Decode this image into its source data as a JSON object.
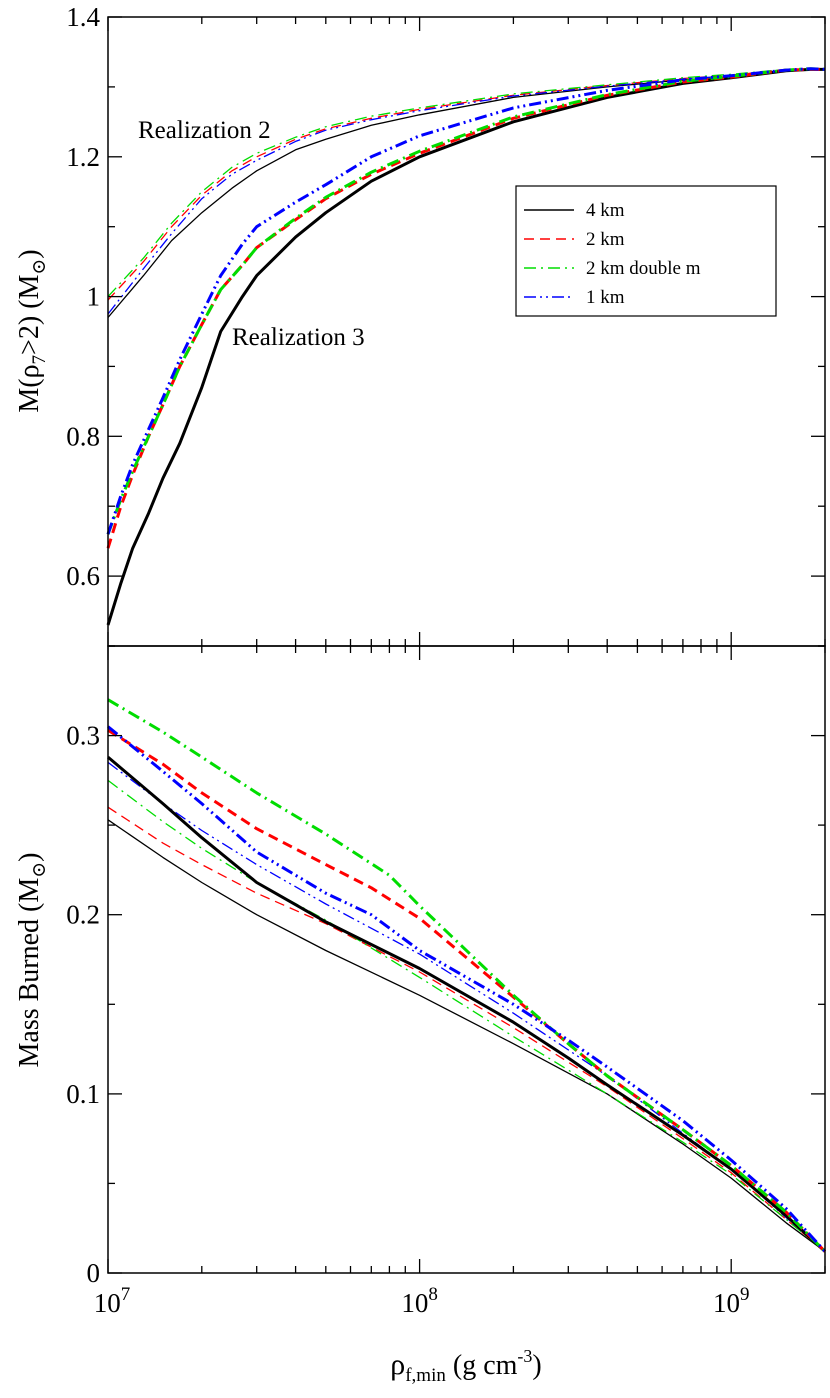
{
  "chart_data": [
    {
      "type": "line",
      "panel": "top",
      "ylabel": "M(ρ7>2) (M⊙)",
      "ylabel_parts": {
        "main": "M(ρ",
        "sub": "7",
        "rest": ">2) (M",
        "unit": "⊙",
        "close": ")"
      },
      "xscale": "log",
      "xlim": [
        10000000.0,
        2000000000.0
      ],
      "ylim": [
        0.5,
        1.4
      ],
      "yticks": [
        0.6,
        0.8,
        1.0,
        1.2,
        1.4
      ],
      "ytick_labels": [
        "0.6",
        "0.8",
        "1",
        "1.2",
        "1.4"
      ],
      "annotations": [
        {
          "text": "Realization 2",
          "x": 22000000.0,
          "y": 1.24
        },
        {
          "text": "Realization 3",
          "x": 27000000.0,
          "y": 0.93
        }
      ],
      "legend": {
        "position": "upper-right",
        "entries": [
          {
            "label": "4 km",
            "color": "#000000",
            "dash": "solid"
          },
          {
            "label": "2 km",
            "color": "#ff0000",
            "dash": "dashed"
          },
          {
            "label": "2 km double m",
            "color": "#00dd00",
            "dash": "dashdot"
          },
          {
            "label": "1 km",
            "color": "#0000ff",
            "dash": "dashdotdot"
          }
        ]
      },
      "series": [
        {
          "name": "4 km",
          "realization": "2",
          "color": "#000000",
          "dash": "solid",
          "width": 1.3,
          "x": [
            10000000.0,
            13000000.0,
            16000000.0,
            20000000.0,
            25000000.0,
            30000000.0,
            40000000.0,
            50000000.0,
            70000000.0,
            100000000.0,
            200000000.0,
            400000000.0,
            700000000.0,
            1000000000.0,
            1500000000.0,
            1800000000.0,
            2000000000.0
          ],
          "y": [
            0.97,
            1.03,
            1.08,
            1.12,
            1.155,
            1.18,
            1.21,
            1.225,
            1.245,
            1.26,
            1.285,
            1.3,
            1.31,
            1.315,
            1.323,
            1.325,
            1.325
          ]
        },
        {
          "name": "2 km",
          "realization": "2",
          "color": "#ff0000",
          "dash": "dashed",
          "width": 1.3,
          "x": [
            10000000.0,
            13000000.0,
            16000000.0,
            20000000.0,
            25000000.0,
            30000000.0,
            40000000.0,
            50000000.0,
            70000000.0,
            100000000.0,
            200000000.0,
            400000000.0,
            700000000.0,
            1000000000.0,
            1500000000.0,
            1800000000.0,
            2000000000.0
          ],
          "y": [
            0.995,
            1.05,
            1.1,
            1.145,
            1.18,
            1.2,
            1.225,
            1.24,
            1.255,
            1.268,
            1.288,
            1.302,
            1.312,
            1.317,
            1.324,
            1.325,
            1.325
          ]
        },
        {
          "name": "2 km double m",
          "realization": "2",
          "color": "#00dd00",
          "dash": "dashdot",
          "width": 1.3,
          "x": [
            10000000.0,
            13000000.0,
            16000000.0,
            20000000.0,
            25000000.0,
            30000000.0,
            40000000.0,
            50000000.0,
            70000000.0,
            100000000.0,
            200000000.0,
            400000000.0,
            700000000.0,
            1000000000.0,
            1500000000.0,
            1800000000.0,
            2000000000.0
          ],
          "y": [
            1.0,
            1.055,
            1.105,
            1.15,
            1.185,
            1.205,
            1.228,
            1.243,
            1.258,
            1.27,
            1.29,
            1.303,
            1.313,
            1.318,
            1.325,
            1.326,
            1.325
          ]
        },
        {
          "name": "1 km",
          "realization": "2",
          "color": "#0000ff",
          "dash": "dashdotdot",
          "width": 1.3,
          "x": [
            10000000.0,
            13000000.0,
            16000000.0,
            20000000.0,
            25000000.0,
            30000000.0,
            40000000.0,
            50000000.0,
            70000000.0,
            100000000.0,
            200000000.0,
            400000000.0,
            700000000.0,
            1000000000.0,
            1500000000.0,
            1800000000.0,
            2000000000.0
          ],
          "y": [
            0.975,
            1.04,
            1.09,
            1.14,
            1.175,
            1.195,
            1.222,
            1.238,
            1.253,
            1.266,
            1.287,
            1.301,
            1.311,
            1.316,
            1.324,
            1.325,
            1.325
          ]
        },
        {
          "name": "4 km",
          "realization": "3",
          "color": "#000000",
          "dash": "solid",
          "width": 3,
          "x": [
            10000000.0,
            11000000.0,
            12000000.0,
            13500000.0,
            15000000.0,
            17000000.0,
            20000000.0,
            23000000.0,
            27000000.0,
            30000000.0,
            40000000.0,
            50000000.0,
            70000000.0,
            100000000.0,
            200000000.0,
            400000000.0,
            700000000.0,
            1000000000.0,
            1500000000.0,
            1800000000.0,
            2000000000.0
          ],
          "y": [
            0.53,
            0.59,
            0.64,
            0.69,
            0.74,
            0.79,
            0.87,
            0.95,
            1.0,
            1.03,
            1.085,
            1.12,
            1.165,
            1.2,
            1.25,
            1.285,
            1.305,
            1.313,
            1.323,
            1.325,
            1.325
          ]
        },
        {
          "name": "2 km",
          "realization": "3",
          "color": "#ff0000",
          "dash": "dashed",
          "width": 3,
          "x": [
            10000000.0,
            11000000.0,
            12000000.0,
            13500000.0,
            15000000.0,
            17000000.0,
            20000000.0,
            23000000.0,
            27000000.0,
            30000000.0,
            40000000.0,
            50000000.0,
            70000000.0,
            100000000.0,
            200000000.0,
            400000000.0,
            700000000.0,
            1000000000.0,
            1500000000.0,
            1800000000.0,
            2000000000.0
          ],
          "y": [
            0.64,
            0.7,
            0.745,
            0.8,
            0.845,
            0.9,
            0.96,
            1.01,
            1.045,
            1.07,
            1.11,
            1.14,
            1.175,
            1.205,
            1.255,
            1.288,
            1.307,
            1.314,
            1.324,
            1.325,
            1.325
          ]
        },
        {
          "name": "2 km double m",
          "realization": "3",
          "color": "#00dd00",
          "dash": "dashdot",
          "width": 3,
          "x": [
            10000000.0,
            11000000.0,
            12000000.0,
            13500000.0,
            15000000.0,
            17000000.0,
            20000000.0,
            23000000.0,
            27000000.0,
            30000000.0,
            40000000.0,
            50000000.0,
            70000000.0,
            100000000.0,
            200000000.0,
            400000000.0,
            700000000.0,
            1000000000.0,
            1500000000.0,
            1800000000.0,
            2000000000.0
          ],
          "y": [
            0.66,
            0.71,
            0.75,
            0.8,
            0.845,
            0.9,
            0.96,
            1.01,
            1.045,
            1.07,
            1.112,
            1.142,
            1.178,
            1.208,
            1.257,
            1.289,
            1.308,
            1.315,
            1.324,
            1.326,
            1.325
          ]
        },
        {
          "name": "1 km",
          "realization": "3",
          "color": "#0000ff",
          "dash": "dashdotdot",
          "width": 3,
          "x": [
            10000000.0,
            11000000.0,
            12000000.0,
            13500000.0,
            15000000.0,
            17000000.0,
            20000000.0,
            23000000.0,
            27000000.0,
            30000000.0,
            40000000.0,
            50000000.0,
            70000000.0,
            100000000.0,
            200000000.0,
            400000000.0,
            700000000.0,
            1000000000.0,
            1500000000.0,
            1800000000.0,
            2000000000.0
          ],
          "y": [
            0.66,
            0.715,
            0.76,
            0.81,
            0.855,
            0.91,
            0.975,
            1.03,
            1.075,
            1.1,
            1.135,
            1.16,
            1.2,
            1.23,
            1.27,
            1.295,
            1.31,
            1.316,
            1.324,
            1.326,
            1.325
          ]
        }
      ]
    },
    {
      "type": "line",
      "panel": "bottom",
      "ylabel": "Mass Burned (M⊙)",
      "ylabel_parts": {
        "main": "Mass Burned (M",
        "unit": "⊙",
        "close": ")"
      },
      "xlabel": "ρf,min (g cm-3)",
      "xlabel_parts": {
        "rho": "ρ",
        "sub": "f,min",
        "mid": " (g cm",
        "sup": "-3",
        "close": ")"
      },
      "xscale": "log",
      "xlim": [
        10000000.0,
        2000000000.0
      ],
      "ylim": [
        0.0,
        0.35
      ],
      "yticks": [
        0.0,
        0.1,
        0.2,
        0.3
      ],
      "ytick_labels": [
        "0",
        "0.1",
        "0.2",
        "0.3"
      ],
      "xticks": [
        10000000.0,
        100000000.0,
        1000000000.0
      ],
      "xtick_labels": [
        {
          "base": "10",
          "exp": "7"
        },
        {
          "base": "10",
          "exp": "8"
        },
        {
          "base": "10",
          "exp": "9"
        }
      ],
      "series": [
        {
          "name": "4 km",
          "realization": "2",
          "color": "#000000",
          "dash": "solid",
          "width": 1.3,
          "x": [
            10000000.0,
            15000000.0,
            20000000.0,
            30000000.0,
            50000000.0,
            100000000.0,
            200000000.0,
            400000000.0,
            700000000.0,
            1000000000.0,
            1500000000.0,
            2000000000.0
          ],
          "y": [
            0.253,
            0.232,
            0.218,
            0.2,
            0.18,
            0.155,
            0.128,
            0.1,
            0.072,
            0.053,
            0.028,
            0.012
          ]
        },
        {
          "name": "2 km",
          "realization": "2",
          "color": "#ff0000",
          "dash": "dashed",
          "width": 1.3,
          "x": [
            10000000.0,
            15000000.0,
            20000000.0,
            30000000.0,
            50000000.0,
            100000000.0,
            200000000.0,
            400000000.0,
            700000000.0,
            1000000000.0,
            1500000000.0,
            2000000000.0
          ],
          "y": [
            0.26,
            0.24,
            0.228,
            0.212,
            0.195,
            0.168,
            0.137,
            0.104,
            0.075,
            0.056,
            0.03,
            0.012
          ]
        },
        {
          "name": "2 km double m",
          "realization": "2",
          "color": "#00dd00",
          "dash": "dashdot",
          "width": 1.3,
          "x": [
            10000000.0,
            15000000.0,
            20000000.0,
            30000000.0,
            50000000.0,
            100000000.0,
            200000000.0,
            400000000.0,
            700000000.0,
            1000000000.0,
            1500000000.0,
            2000000000.0
          ],
          "y": [
            0.275,
            0.252,
            0.237,
            0.218,
            0.197,
            0.165,
            0.132,
            0.1,
            0.073,
            0.055,
            0.03,
            0.012
          ]
        },
        {
          "name": "1 km",
          "realization": "2",
          "color": "#0000ff",
          "dash": "dashdotdot",
          "width": 1.3,
          "x": [
            10000000.0,
            15000000.0,
            20000000.0,
            30000000.0,
            50000000.0,
            100000000.0,
            200000000.0,
            400000000.0,
            700000000.0,
            1000000000.0,
            1500000000.0,
            2000000000.0
          ],
          "y": [
            0.285,
            0.262,
            0.247,
            0.228,
            0.206,
            0.178,
            0.145,
            0.11,
            0.078,
            0.058,
            0.031,
            0.012
          ]
        },
        {
          "name": "4 km",
          "realization": "3",
          "color": "#000000",
          "dash": "solid",
          "width": 3,
          "x": [
            10000000.0,
            15000000.0,
            20000000.0,
            30000000.0,
            50000000.0,
            100000000.0,
            200000000.0,
            300000000.0,
            400000000.0,
            700000000.0,
            1000000000.0,
            1500000000.0,
            2000000000.0
          ],
          "y": [
            0.288,
            0.262,
            0.243,
            0.218,
            0.196,
            0.17,
            0.14,
            0.12,
            0.105,
            0.077,
            0.058,
            0.032,
            0.012
          ]
        },
        {
          "name": "2 km",
          "realization": "3",
          "color": "#ff0000",
          "dash": "dashed",
          "width": 3,
          "x": [
            10000000.0,
            15000000.0,
            20000000.0,
            30000000.0,
            50000000.0,
            70000000.0,
            100000000.0,
            200000000.0,
            300000000.0,
            400000000.0,
            700000000.0,
            1000000000.0,
            1500000000.0,
            2000000000.0
          ],
          "y": [
            0.303,
            0.284,
            0.268,
            0.248,
            0.228,
            0.215,
            0.198,
            0.154,
            0.128,
            0.11,
            0.08,
            0.06,
            0.034,
            0.012
          ]
        },
        {
          "name": "2 km double m",
          "realization": "3",
          "color": "#00dd00",
          "dash": "dashdot",
          "width": 3,
          "x": [
            10000000.0,
            15000000.0,
            20000000.0,
            30000000.0,
            50000000.0,
            80000000.0,
            100000000.0,
            200000000.0,
            300000000.0,
            400000000.0,
            700000000.0,
            1000000000.0,
            1500000000.0,
            2000000000.0
          ],
          "y": [
            0.32,
            0.302,
            0.288,
            0.268,
            0.245,
            0.222,
            0.205,
            0.155,
            0.128,
            0.11,
            0.08,
            0.06,
            0.034,
            0.012
          ]
        },
        {
          "name": "1 km",
          "realization": "3",
          "color": "#0000ff",
          "dash": "dashdotdot",
          "width": 3,
          "x": [
            10000000.0,
            15000000.0,
            20000000.0,
            30000000.0,
            50000000.0,
            70000000.0,
            100000000.0,
            200000000.0,
            300000000.0,
            400000000.0,
            700000000.0,
            1000000000.0,
            1500000000.0,
            2000000000.0
          ],
          "y": [
            0.305,
            0.28,
            0.262,
            0.235,
            0.212,
            0.2,
            0.18,
            0.15,
            0.13,
            0.115,
            0.085,
            0.063,
            0.036,
            0.012
          ]
        }
      ]
    }
  ]
}
